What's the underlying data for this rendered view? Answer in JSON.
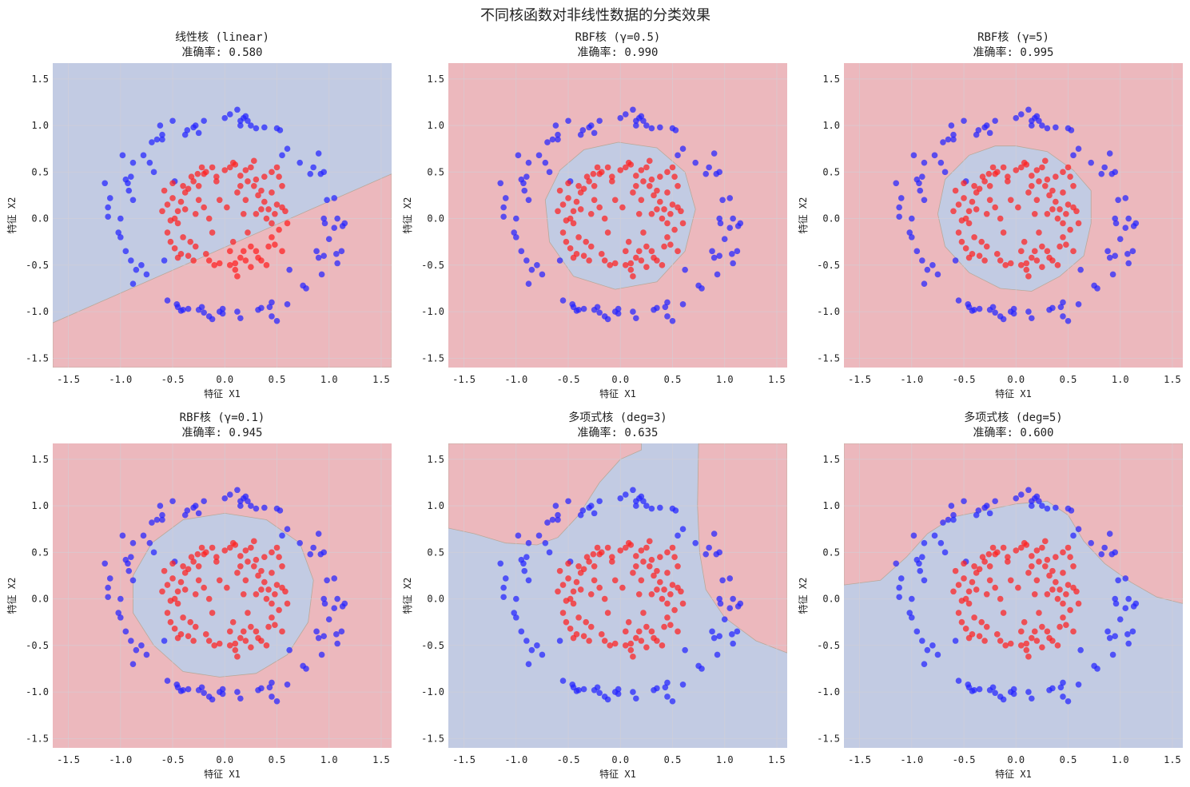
{
  "figure": {
    "title": "不同核函数对非线性数据的分类效果"
  },
  "colors": {
    "region_red": "#ecb8bd",
    "region_blue": "#c2cbe3",
    "point_red": "#ff1f1f",
    "point_blue": "#2222ff",
    "grid": "#d3cfd6"
  },
  "chart_data": [
    {
      "type": "scatter",
      "title": "线性核 (linear)",
      "accuracy_label": "准确率: 0.580",
      "accuracy": 0.58,
      "xlabel": "特征 X1",
      "ylabel": "特征 X2",
      "xlim": [
        -1.65,
        1.6
      ],
      "ylim": [
        -1.6,
        1.67
      ],
      "xticks": [
        "-1.5",
        "-1.0",
        "-0.5",
        "0.0",
        "0.5",
        "1.0",
        "1.5"
      ],
      "yticks": [
        "1.5",
        "1.0",
        "0.5",
        "0.0",
        "-0.5",
        "-1.0",
        "-1.5"
      ],
      "decision_region": {
        "default_class": "blue",
        "region_class": "red",
        "boundary": "line through (-1.65,-1.12) and (1.6,0.48); red below"
      }
    },
    {
      "type": "scatter",
      "title": "RBF核 (γ=0.5)",
      "accuracy_label": "准确率: 0.990",
      "accuracy": 0.99,
      "xlabel": "特征 X1",
      "ylabel": "特征 X2",
      "xlim": [
        -1.65,
        1.6
      ],
      "ylim": [
        -1.6,
        1.67
      ],
      "xticks": [
        "-1.5",
        "-1.0",
        "-0.5",
        "0.0",
        "0.5",
        "1.0",
        "1.5"
      ],
      "yticks": [
        "1.5",
        "1.0",
        "0.5",
        "0.0",
        "-0.5",
        "-1.0",
        "-1.5"
      ],
      "decision_region": {
        "default_class": "red",
        "region_class": "blue",
        "boundary": "closed curve",
        "polygon": [
          [
            -0.02,
            0.82
          ],
          [
            0.35,
            0.76
          ],
          [
            0.62,
            0.5
          ],
          [
            0.72,
            0.1
          ],
          [
            0.62,
            -0.35
          ],
          [
            0.35,
            -0.68
          ],
          [
            -0.05,
            -0.76
          ],
          [
            -0.45,
            -0.62
          ],
          [
            -0.68,
            -0.25
          ],
          [
            -0.72,
            0.2
          ],
          [
            -0.58,
            0.52
          ],
          [
            -0.35,
            0.74
          ]
        ]
      }
    },
    {
      "type": "scatter",
      "title": "RBF核 (γ=5)",
      "accuracy_label": "准确率: 0.995",
      "accuracy": 0.995,
      "xlabel": "特征 X1",
      "ylabel": "特征 X2",
      "xlim": [
        -1.65,
        1.6
      ],
      "ylim": [
        -1.6,
        1.67
      ],
      "xticks": [
        "-1.5",
        "-1.0",
        "-0.5",
        "0.0",
        "0.5",
        "1.0",
        "1.5"
      ],
      "yticks": [
        "1.5",
        "1.0",
        "0.5",
        "0.0",
        "-0.5",
        "-1.0",
        "-1.5"
      ],
      "decision_region": {
        "default_class": "red",
        "region_class": "blue",
        "boundary": "closed curve",
        "polygon": [
          [
            0.0,
            0.78
          ],
          [
            0.3,
            0.72
          ],
          [
            0.55,
            0.52
          ],
          [
            0.72,
            0.3
          ],
          [
            0.72,
            -0.05
          ],
          [
            0.65,
            -0.4
          ],
          [
            0.42,
            -0.62
          ],
          [
            0.15,
            -0.78
          ],
          [
            -0.15,
            -0.75
          ],
          [
            -0.45,
            -0.58
          ],
          [
            -0.68,
            -0.3
          ],
          [
            -0.75,
            0.05
          ],
          [
            -0.68,
            0.42
          ],
          [
            -0.45,
            0.68
          ],
          [
            -0.2,
            0.78
          ]
        ]
      }
    },
    {
      "type": "scatter",
      "title": "RBF核 (γ=0.1)",
      "accuracy_label": "准确率: 0.945",
      "accuracy": 0.945,
      "xlabel": "特征 X1",
      "ylabel": "特征 X2",
      "xlim": [
        -1.65,
        1.6
      ],
      "ylim": [
        -1.6,
        1.67
      ],
      "xticks": [
        "-1.5",
        "-1.0",
        "-0.5",
        "0.0",
        "0.5",
        "1.0",
        "1.5"
      ],
      "yticks": [
        "1.5",
        "1.0",
        "0.5",
        "0.0",
        "-0.5",
        "-1.0",
        "-1.5"
      ],
      "decision_region": {
        "default_class": "red",
        "region_class": "blue",
        "boundary": "closed curve",
        "polygon": [
          [
            0.0,
            0.92
          ],
          [
            0.4,
            0.85
          ],
          [
            0.72,
            0.6
          ],
          [
            0.85,
            0.2
          ],
          [
            0.8,
            -0.25
          ],
          [
            0.6,
            -0.6
          ],
          [
            0.3,
            -0.8
          ],
          [
            -0.05,
            -0.84
          ],
          [
            -0.4,
            -0.78
          ],
          [
            -0.68,
            -0.5
          ],
          [
            -0.88,
            -0.15
          ],
          [
            -0.88,
            0.25
          ],
          [
            -0.7,
            0.6
          ],
          [
            -0.4,
            0.85
          ]
        ]
      }
    },
    {
      "type": "scatter",
      "title": "多项式核 (deg=3)",
      "accuracy_label": "准确率: 0.635",
      "accuracy": 0.635,
      "xlabel": "特征 X1",
      "ylabel": "特征 X2",
      "xlim": [
        -1.65,
        1.6
      ],
      "ylim": [
        -1.6,
        1.67
      ],
      "xticks": [
        "-1.5",
        "-1.0",
        "-0.5",
        "0.0",
        "0.5",
        "1.0",
        "1.5"
      ],
      "yticks": [
        "1.5",
        "1.0",
        "0.5",
        "0.0",
        "-0.5",
        "-1.0",
        "-1.5"
      ],
      "decision_region": {
        "default_class": "blue",
        "region_class": "red",
        "boundary": "two open curves",
        "polygons": [
          [
            [
              -1.65,
              1.67
            ],
            [
              0.2,
              1.67
            ],
            [
              0.2,
              1.6
            ],
            [
              0.0,
              1.5
            ],
            [
              -0.2,
              1.25
            ],
            [
              -0.4,
              0.9
            ],
            [
              -0.6,
              0.66
            ],
            [
              -0.8,
              0.58
            ],
            [
              -1.1,
              0.6
            ],
            [
              -1.4,
              0.7
            ],
            [
              -1.65,
              0.76
            ]
          ],
          [
            [
              0.75,
              1.67
            ],
            [
              1.6,
              1.67
            ],
            [
              1.6,
              -0.58
            ],
            [
              1.3,
              -0.45
            ],
            [
              1.0,
              -0.2
            ],
            [
              0.82,
              0.1
            ],
            [
              0.76,
              0.5
            ],
            [
              0.74,
              1.0
            ]
          ]
        ]
      }
    },
    {
      "type": "scatter",
      "title": "多项式核 (deg=5)",
      "accuracy_label": "准确率: 0.600",
      "accuracy": 0.6,
      "xlabel": "特征 X1",
      "ylabel": "特征 X2",
      "xlim": [
        -1.65,
        1.6
      ],
      "ylim": [
        -1.6,
        1.67
      ],
      "xticks": [
        "-1.5",
        "-1.0",
        "-0.5",
        "0.0",
        "0.5",
        "1.0",
        "1.5"
      ],
      "yticks": [
        "1.5",
        "1.0",
        "0.5",
        "0.0",
        "-0.5",
        "-1.0",
        "-1.5"
      ],
      "decision_region": {
        "default_class": "blue",
        "region_class": "red",
        "boundary": "open curve",
        "polygon": [
          [
            -1.65,
            1.67
          ],
          [
            1.6,
            1.67
          ],
          [
            1.6,
            -0.05
          ],
          [
            1.35,
            0.02
          ],
          [
            1.1,
            0.18
          ],
          [
            0.85,
            0.38
          ],
          [
            0.65,
            0.62
          ],
          [
            0.5,
            0.9
          ],
          [
            0.3,
            1.05
          ],
          [
            0.0,
            1.02
          ],
          [
            -0.3,
            0.95
          ],
          [
            -0.6,
            0.88
          ],
          [
            -0.85,
            0.7
          ],
          [
            -1.05,
            0.45
          ],
          [
            -1.3,
            0.2
          ],
          [
            -1.65,
            0.15
          ]
        ]
      }
    }
  ],
  "dataset": {
    "note": "Same 200-point dataset in all six panels (outer ring = blue class, inner ring = red class).",
    "blue_points": [
      [
        -1.15,
        0.38
      ],
      [
        -1.12,
        0.02
      ],
      [
        -1.12,
        0.12
      ],
      [
        -1.1,
        0.22
      ],
      [
        -1.02,
        -0.15
      ],
      [
        -1.0,
        -0.2
      ],
      [
        -0.98,
        0.68
      ],
      [
        -0.95,
        0.42
      ],
      [
        -0.93,
        0.38
      ],
      [
        -0.92,
        0.3
      ],
      [
        -0.9,
        0.45
      ],
      [
        -0.88,
        0.2
      ],
      [
        -0.95,
        -0.35
      ],
      [
        -0.9,
        -0.45
      ],
      [
        -0.88,
        -0.7
      ],
      [
        -0.85,
        -0.55
      ],
      [
        -0.8,
        -0.5
      ],
      [
        -0.78,
        0.68
      ],
      [
        -0.72,
        0.6
      ],
      [
        -0.7,
        0.82
      ],
      [
        -0.75,
        -0.6
      ],
      [
        -0.68,
        0.5
      ],
      [
        -0.62,
        1.0
      ],
      [
        -0.6,
        0.85
      ],
      [
        -0.6,
        0.9
      ],
      [
        -0.58,
        -0.45
      ],
      [
        -0.5,
        1.05
      ],
      [
        -0.48,
        0.4
      ],
      [
        -0.46,
        -0.92
      ],
      [
        -0.45,
        -0.95
      ],
      [
        -0.42,
        -0.99
      ],
      [
        -0.38,
        0.9
      ],
      [
        -0.36,
        0.95
      ],
      [
        -0.35,
        -0.97
      ],
      [
        -0.3,
        0.98
      ],
      [
        -0.28,
        1.0
      ],
      [
        -0.25,
        0.92
      ],
      [
        -0.25,
        -0.98
      ],
      [
        -0.22,
        -0.95
      ],
      [
        -0.2,
        -1.01
      ],
      [
        -0.15,
        -1.05
      ],
      [
        -0.12,
        -1.08
      ],
      [
        -0.05,
        -1.0
      ],
      [
        -0.02,
        -1.02
      ],
      [
        0.05,
        1.12
      ],
      [
        0.12,
        1.17
      ],
      [
        0.15,
        1.0
      ],
      [
        0.15,
        1.05
      ],
      [
        0.12,
        -1.0
      ],
      [
        0.18,
        1.08
      ],
      [
        0.22,
        1.05
      ],
      [
        0.2,
        1.1
      ],
      [
        0.15,
        -1.07
      ],
      [
        0.25,
        1.0
      ],
      [
        0.3,
        0.97
      ],
      [
        0.35,
        -0.96
      ],
      [
        0.32,
        -0.98
      ],
      [
        0.38,
        0.98
      ],
      [
        0.43,
        -0.95
      ],
      [
        0.45,
        -0.9
      ],
      [
        0.5,
        -1.1
      ],
      [
        0.5,
        0.97
      ],
      [
        0.53,
        0.95
      ],
      [
        0.55,
        0.68
      ],
      [
        0.6,
        0.75
      ],
      [
        0.6,
        -0.92
      ],
      [
        0.72,
        0.6
      ],
      [
        0.78,
        -0.75
      ],
      [
        0.75,
        -0.72
      ],
      [
        0.82,
        0.48
      ],
      [
        0.85,
        0.55
      ],
      [
        0.88,
        -0.35
      ],
      [
        0.9,
        0.7
      ],
      [
        0.92,
        0.48
      ],
      [
        0.95,
        0.5
      ],
      [
        0.95,
        -0.4
      ],
      [
        0.9,
        -0.42
      ],
      [
        0.93,
        -0.6
      ],
      [
        0.98,
        0.2
      ],
      [
        0.95,
        0.0
      ],
      [
        0.96,
        -0.05
      ],
      [
        1.0,
        -0.22
      ],
      [
        1.05,
        0.22
      ],
      [
        1.08,
        0.0
      ],
      [
        1.08,
        -0.48
      ],
      [
        1.12,
        -0.35
      ],
      [
        1.13,
        -0.08
      ],
      [
        1.15,
        -0.05
      ],
      [
        1.07,
        -0.38
      ],
      [
        -0.02,
        -0.97
      ],
      [
        -0.55,
        -0.88
      ],
      [
        -0.65,
        0.85
      ],
      [
        0.0,
        1.08
      ],
      [
        0.45,
        -1.05
      ],
      [
        -0.2,
        1.05
      ],
      [
        1.05,
        -0.1
      ],
      [
        -1.0,
        0.0
      ],
      [
        0.62,
        -0.55
      ],
      [
        -0.88,
        0.6
      ],
      [
        -0.4,
        -0.98
      ]
    ],
    "red_points": [
      [
        -0.6,
        0.08
      ],
      [
        -0.55,
        0.15
      ],
      [
        -0.52,
        -0.02
      ],
      [
        -0.5,
        0.22
      ],
      [
        -0.48,
        0.0
      ],
      [
        -0.45,
        -0.05
      ],
      [
        -0.45,
        0.08
      ],
      [
        -0.42,
        0.18
      ],
      [
        -0.4,
        0.35
      ],
      [
        -0.4,
        -0.2
      ],
      [
        -0.38,
        0.28
      ],
      [
        -0.35,
        0.32
      ],
      [
        -0.32,
        0.45
      ],
      [
        -0.3,
        0.4
      ],
      [
        -0.28,
        -0.3
      ],
      [
        -0.26,
        0.48
      ],
      [
        -0.25,
        0.35
      ],
      [
        -0.22,
        0.55
      ],
      [
        -0.2,
        0.48
      ],
      [
        -0.18,
        -0.38
      ],
      [
        -0.18,
        0.5
      ],
      [
        -0.15,
        -0.45
      ],
      [
        -0.12,
        0.55
      ],
      [
        -0.1,
        -0.5
      ],
      [
        -0.08,
        0.4
      ],
      [
        -0.05,
        -0.48
      ],
      [
        0.0,
        0.52
      ],
      [
        0.05,
        0.55
      ],
      [
        0.05,
        -0.5
      ],
      [
        0.1,
        0.58
      ],
      [
        0.1,
        -0.55
      ],
      [
        0.12,
        -0.62
      ],
      [
        0.15,
        0.46
      ],
      [
        0.15,
        -0.42
      ],
      [
        0.18,
        -0.35
      ],
      [
        0.2,
        0.52
      ],
      [
        0.2,
        -0.45
      ],
      [
        0.22,
        0.4
      ],
      [
        0.25,
        0.55
      ],
      [
        0.25,
        -0.52
      ],
      [
        0.28,
        0.35
      ],
      [
        0.3,
        -0.35
      ],
      [
        0.3,
        0.42
      ],
      [
        0.32,
        0.25
      ],
      [
        0.35,
        -0.45
      ],
      [
        0.35,
        0.1
      ],
      [
        0.38,
        0.18
      ],
      [
        0.4,
        0.0
      ],
      [
        0.42,
        -0.3
      ],
      [
        0.42,
        0.1
      ],
      [
        0.45,
        0.28
      ],
      [
        0.45,
        -0.2
      ],
      [
        0.48,
        0.05
      ],
      [
        0.5,
        0.15
      ],
      [
        0.5,
        0.55
      ],
      [
        0.52,
        -0.12
      ],
      [
        0.55,
        0.12
      ],
      [
        0.55,
        0.35
      ],
      [
        0.58,
        0.08
      ],
      [
        0.6,
        -0.05
      ],
      [
        -0.55,
        -0.15
      ],
      [
        -0.52,
        -0.25
      ],
      [
        -0.48,
        -0.32
      ],
      [
        -0.42,
        -0.38
      ],
      [
        -0.35,
        -0.4
      ],
      [
        -0.3,
        -0.45
      ],
      [
        -0.25,
        0.2
      ],
      [
        -0.2,
        0.12
      ],
      [
        -0.15,
        0.0
      ],
      [
        -0.12,
        -0.15
      ],
      [
        -0.05,
        0.2
      ],
      [
        0.02,
        0.12
      ],
      [
        0.08,
        -0.25
      ],
      [
        0.12,
        0.28
      ],
      [
        0.18,
        0.05
      ],
      [
        0.22,
        -0.15
      ],
      [
        0.28,
        0.62
      ],
      [
        0.32,
        -0.42
      ],
      [
        0.38,
        0.45
      ],
      [
        0.4,
        -0.5
      ],
      [
        0.45,
        0.5
      ],
      [
        0.48,
        -0.28
      ],
      [
        0.52,
        0.45
      ],
      [
        0.55,
        -0.35
      ],
      [
        -0.58,
        0.3
      ],
      [
        -0.5,
        0.38
      ],
      [
        -0.45,
        -0.42
      ],
      [
        -0.38,
        0.1
      ],
      [
        -0.33,
        -0.25
      ],
      [
        -0.28,
        0.05
      ],
      [
        0.08,
        0.6
      ],
      [
        0.15,
        0.35
      ],
      [
        0.25,
        -0.3
      ],
      [
        0.35,
        0.3
      ],
      [
        0.45,
        -0.05
      ],
      [
        0.1,
        -0.48
      ],
      [
        0.05,
        -0.35
      ],
      [
        -0.08,
        0.45
      ],
      [
        0.3,
        0.05
      ],
      [
        0.2,
        0.2
      ]
    ]
  }
}
